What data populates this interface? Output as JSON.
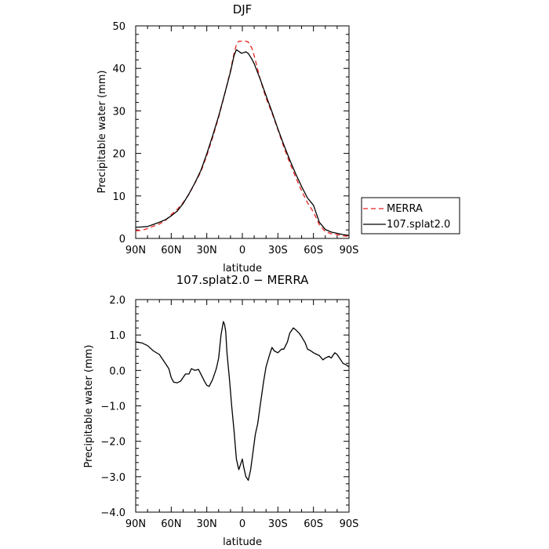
{
  "chart_data": [
    {
      "type": "line",
      "title": "DJF",
      "xlabel": "latitude",
      "ylabel": "Precipitable water  (mm)",
      "xlim": [
        90,
        -90
      ],
      "ylim": [
        0,
        50
      ],
      "xticks": [
        90,
        60,
        30,
        0,
        -30,
        -60,
        -90
      ],
      "xtick_labels": [
        "90N",
        "60N",
        "30N",
        "0",
        "30S",
        "60S",
        "90S"
      ],
      "yticks": [
        0,
        10,
        20,
        30,
        40,
        50
      ],
      "ytick_labels": [
        "0",
        "10",
        "20",
        "30",
        "40",
        "50"
      ],
      "grid": false,
      "legend_position": "right",
      "series": [
        {
          "name": "MERRA",
          "style": "dashed",
          "color": "#e8221e",
          "x": [
            90,
            85,
            80,
            75,
            70,
            65,
            60,
            55,
            50,
            45,
            40,
            35,
            30,
            25,
            20,
            15,
            10,
            7,
            5,
            3,
            1,
            0,
            -3,
            -5,
            -8,
            -10,
            -15,
            -20,
            -25,
            -30,
            -35,
            -40,
            -45,
            -50,
            -55,
            -60,
            -65,
            -70,
            -75,
            -80,
            -85,
            -90
          ],
          "y": [
            1.8,
            1.9,
            2.3,
            2.9,
            3.4,
            4.2,
            5.6,
            6.8,
            8.4,
            10.4,
            13,
            15.7,
            19.5,
            23.8,
            28.5,
            33.8,
            39.5,
            43.5,
            45.6,
            46.4,
            46.4,
            46.4,
            46.4,
            46.2,
            44.8,
            43,
            37.5,
            33,
            29.5,
            25.6,
            21.5,
            17.8,
            14.4,
            11.2,
            8.4,
            6.2,
            3.2,
            1.6,
            1.1,
            0.9,
            0.6,
            0.5
          ]
        },
        {
          "name": "107.splat2.0",
          "style": "solid",
          "color": "#000000",
          "x": [
            90,
            85,
            80,
            75,
            70,
            65,
            60,
            55,
            50,
            45,
            40,
            35,
            30,
            25,
            20,
            15,
            10,
            7,
            5,
            3,
            1,
            0,
            -3,
            -5,
            -8,
            -10,
            -15,
            -20,
            -25,
            -30,
            -35,
            -40,
            -45,
            -50,
            -55,
            -60,
            -65,
            -70,
            -75,
            -80,
            -85,
            -90
          ],
          "y": [
            2.6,
            2.7,
            2.8,
            3.3,
            3.8,
            4.4,
            5.3,
            6.4,
            8.2,
            10.5,
            13.1,
            16,
            19.9,
            24.2,
            28.8,
            33.9,
            39.2,
            43,
            44.4,
            44,
            43.6,
            43.6,
            43.9,
            43.5,
            42.2,
            41.1,
            37.5,
            33.6,
            29.8,
            25.8,
            22,
            18.5,
            15.2,
            12.2,
            9.5,
            7.8,
            3.8,
            2.1,
            1.5,
            1.2,
            0.9,
            0.7
          ]
        }
      ]
    },
    {
      "type": "line",
      "title": "107.splat2.0 − MERRA",
      "xlabel": "latitude",
      "ylabel": "Precipitable water  (mm)",
      "xlim": [
        90,
        -90
      ],
      "ylim": [
        -4,
        2
      ],
      "xticks": [
        90,
        60,
        30,
        0,
        -30,
        -60,
        -90
      ],
      "xtick_labels": [
        "90N",
        "60N",
        "30N",
        "0",
        "30S",
        "60S",
        "90S"
      ],
      "yticks": [
        -4,
        -3,
        -2,
        -1,
        0,
        1,
        2
      ],
      "ytick_labels": [
        "−4.0",
        "−3.0",
        "−2.0",
        "−1.0",
        "0.0",
        "1.0",
        "2.0"
      ],
      "grid": false,
      "series": [
        {
          "name": "",
          "style": "solid",
          "color": "#000000",
          "x": [
            90,
            85,
            80,
            75,
            70,
            65,
            62,
            60,
            58,
            55,
            52,
            50,
            48,
            45,
            43,
            40,
            37,
            35,
            32,
            30,
            28,
            25,
            22,
            20,
            18,
            16,
            15,
            14,
            13,
            11,
            9,
            7,
            5,
            3,
            2,
            0,
            -1,
            -3,
            -5,
            -7,
            -9,
            -11,
            -13,
            -15,
            -18,
            -20,
            -23,
            -25,
            -27,
            -30,
            -33,
            -35,
            -38,
            -40,
            -43,
            -45,
            -48,
            -50,
            -53,
            -55,
            -58,
            -60,
            -63,
            -65,
            -68,
            -70,
            -73,
            -75,
            -78,
            -80,
            -83,
            -85,
            -88,
            -90
          ],
          "y": [
            0.8,
            0.78,
            0.7,
            0.55,
            0.45,
            0.2,
            0.05,
            -0.2,
            -0.33,
            -0.35,
            -0.3,
            -0.2,
            -0.1,
            -0.1,
            0.05,
            0.0,
            0.03,
            -0.1,
            -0.3,
            -0.42,
            -0.45,
            -0.25,
            0.05,
            0.35,
            1.0,
            1.38,
            1.3,
            1.1,
            0.5,
            -0.2,
            -1.0,
            -1.7,
            -2.5,
            -2.8,
            -2.7,
            -2.5,
            -2.7,
            -3.0,
            -3.1,
            -2.8,
            -2.3,
            -1.8,
            -1.5,
            -1.0,
            -0.3,
            0.1,
            0.45,
            0.65,
            0.55,
            0.5,
            0.6,
            0.6,
            0.8,
            1.05,
            1.2,
            1.15,
            1.05,
            0.95,
            0.78,
            0.6,
            0.55,
            0.5,
            0.45,
            0.42,
            0.3,
            0.35,
            0.4,
            0.35,
            0.5,
            0.45,
            0.3,
            0.2,
            0.15,
            0.1
          ]
        }
      ]
    }
  ]
}
